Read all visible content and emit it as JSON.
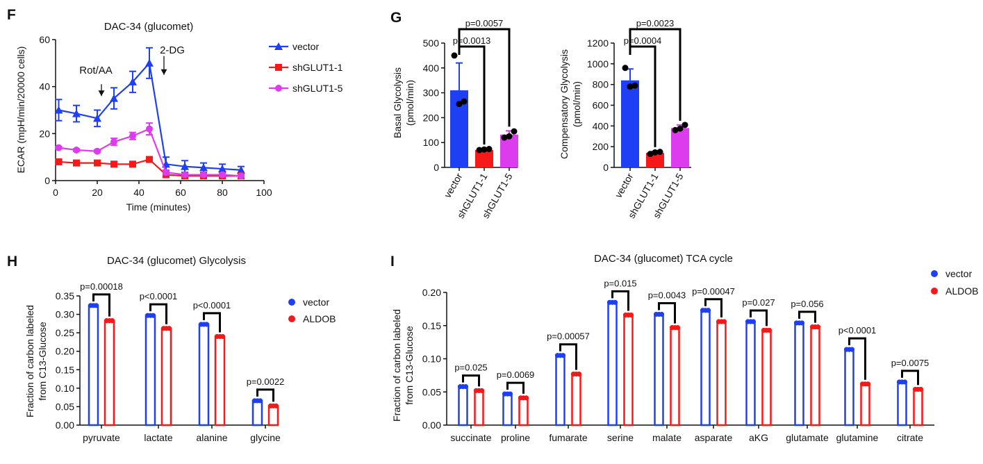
{
  "colors": {
    "blue": "#1f3ff5",
    "red": "#f51919",
    "magenta": "#dd3cee",
    "black": "#000000",
    "dark": "#111111"
  },
  "chart_data": [
    {
      "id": "F",
      "panel_label": "F",
      "type": "line",
      "title": "DAC-34 (glucomet)",
      "xlabel": "Time (minutes)",
      "ylabel": "ECAR (mpH/min/20000 cells)",
      "xlim": [
        0,
        100
      ],
      "ylim": [
        0,
        60
      ],
      "xticks": [
        "0",
        "20",
        "40",
        "60",
        "80",
        "100"
      ],
      "yticks": [
        "0",
        "20",
        "40",
        "60"
      ],
      "annotations": [
        {
          "text": "Rot/AA",
          "x": 22,
          "arrow_from": 41,
          "arrow_to": 36
        },
        {
          "text": "2-DG",
          "x": 52,
          "arrow_from": 53,
          "arrow_to": 45
        }
      ],
      "series": [
        {
          "name": "vector",
          "color": "blue",
          "marker": "triangle",
          "x": [
            1.5,
            10,
            20,
            28,
            37,
            45,
            53,
            62,
            71,
            80,
            89
          ],
          "y": [
            30,
            28.5,
            26.5,
            35,
            42,
            50,
            7,
            6,
            5.5,
            5,
            4.5
          ],
          "err": [
            4.5,
            3.5,
            3.5,
            4.5,
            4.5,
            6.5,
            3,
            2.5,
            2,
            2,
            1.5
          ]
        },
        {
          "name": "shGLUT1-1",
          "color": "red",
          "marker": "square",
          "x": [
            1.5,
            10,
            20,
            28,
            37,
            45,
            53,
            62,
            71,
            80,
            89
          ],
          "y": [
            8,
            7.5,
            7.5,
            7,
            7,
            9,
            2.5,
            2,
            2,
            2,
            2
          ],
          "err": [
            0.5,
            0.5,
            0.5,
            0.5,
            0.5,
            0.5,
            0.5,
            0.5,
            0.5,
            0.5,
            0.5
          ]
        },
        {
          "name": "shGLUT1-5",
          "color": "magenta",
          "marker": "circle",
          "x": [
            1.5,
            10,
            20,
            28,
            37,
            45,
            53,
            62,
            71,
            80,
            89
          ],
          "y": [
            14,
            13,
            12.5,
            16.5,
            19,
            22,
            3.5,
            2.5,
            2.5,
            2.5,
            2
          ],
          "err": [
            0.5,
            0.5,
            0.5,
            1.5,
            1.5,
            2.5,
            1,
            0.5,
            0.5,
            0.5,
            0.5
          ]
        }
      ]
    },
    {
      "id": "G1",
      "panel_label": "G",
      "type": "bar",
      "ylabel": [
        "Basal Glycolysis",
        "(pmol/min)"
      ],
      "ylim": [
        0,
        500
      ],
      "yticks": [
        "0",
        "100",
        "200",
        "300",
        "400",
        "500"
      ],
      "categories": [
        "vector",
        "shGLUT1-1",
        "shGLUT1-5"
      ],
      "values": [
        310,
        70,
        132
      ],
      "errors": [
        110,
        5,
        15
      ],
      "bar_colors": [
        "blue",
        "red",
        "magenta"
      ],
      "points": [
        [
          450,
          255,
          265
        ],
        [
          70,
          72,
          74
        ],
        [
          120,
          125,
          145
        ]
      ],
      "comparisons": [
        {
          "label": "p=0.0057",
          "from": 0,
          "to": 2,
          "level": 2
        },
        {
          "label": "p=0.0013",
          "from": 0,
          "to": 1,
          "level": 1
        }
      ]
    },
    {
      "id": "G2",
      "type": "bar",
      "ylabel": [
        "Compensatory Glycolysis",
        "(pmol/min)"
      ],
      "ylim": [
        0,
        1200
      ],
      "yticks": [
        "0",
        "200",
        "400",
        "600",
        "800",
        "1000",
        "1200"
      ],
      "categories": [
        "vector",
        "shGLUT1-1",
        "shGLUT1-5"
      ],
      "values": [
        840,
        140,
        380
      ],
      "errors": [
        110,
        15,
        30
      ],
      "bar_colors": [
        "blue",
        "red",
        "magenta"
      ],
      "points": [
        [
          960,
          780,
          790
        ],
        [
          130,
          145,
          150
        ],
        [
          360,
          375,
          410
        ]
      ],
      "comparisons": [
        {
          "label": "p=0.0023",
          "from": 0,
          "to": 2,
          "level": 2
        },
        {
          "label": "p=0.0004",
          "from": 0,
          "to": 1,
          "level": 1
        }
      ]
    },
    {
      "id": "H",
      "panel_label": "H",
      "type": "bar",
      "title": "DAC-34 (glucomet) Glycolysis",
      "ylabel": [
        "Fraction of carbon labeled",
        "from C13-Glucose"
      ],
      "ylim": [
        0,
        0.35
      ],
      "yticks": [
        "0.00",
        "0.05",
        "0.10",
        "0.15",
        "0.20",
        "0.25",
        "0.30",
        "0.35"
      ],
      "categories": [
        "pyruvate",
        "lactate",
        "alanine",
        "glycine"
      ],
      "series": [
        {
          "name": "vector",
          "color": "blue",
          "values": [
            0.324,
            0.297,
            0.273,
            0.066
          ]
        },
        {
          "name": "ALDOB",
          "color": "red",
          "values": [
            0.283,
            0.262,
            0.24,
            0.052
          ]
        }
      ],
      "pvalues": [
        "p=0.00018",
        "p<0.0001",
        "p<0.0001",
        "p=0.0022"
      ],
      "legend": "right"
    },
    {
      "id": "I",
      "panel_label": "I",
      "type": "bar",
      "title": "DAC-34 (glucomet) TCA cycle",
      "ylabel": [
        "Fraction of carbon labeled",
        "from C13-Glucose"
      ],
      "ylim": [
        0,
        0.2
      ],
      "yticks": [
        "0.00",
        "0.05",
        "0.10",
        "0.15",
        "0.20"
      ],
      "categories": [
        "succinate",
        "proline",
        "fumarate",
        "serine",
        "malate",
        "asparate",
        "aKG",
        "glutamate",
        "glutamine",
        "citrate"
      ],
      "series": [
        {
          "name": "vector",
          "color": "blue",
          "values": [
            0.058,
            0.047,
            0.105,
            0.185,
            0.167,
            0.173,
            0.156,
            0.154,
            0.114,
            0.065
          ]
        },
        {
          "name": "ALDOB",
          "color": "red",
          "values": [
            0.052,
            0.041,
            0.077,
            0.166,
            0.147,
            0.156,
            0.143,
            0.148,
            0.062,
            0.054
          ]
        }
      ],
      "pvalues": [
        "p=0.025",
        "p=0.0069",
        "p=0.00057",
        "p=0.015",
        "p=0.0043",
        "p=0.00047",
        "p=0.027",
        "p=0.056",
        "p<0.0001",
        "p=0.0075"
      ],
      "legend": "top-right"
    }
  ]
}
